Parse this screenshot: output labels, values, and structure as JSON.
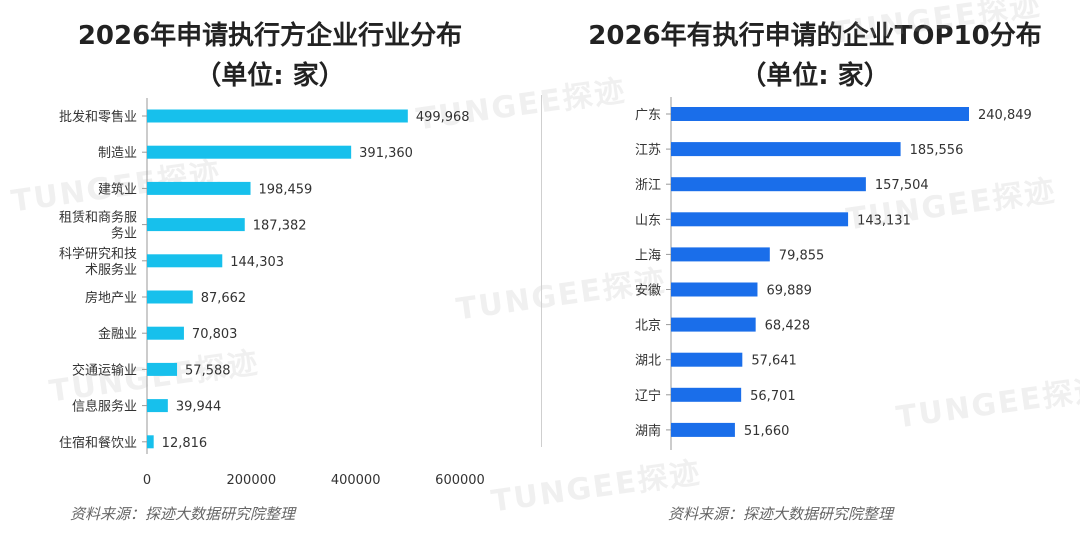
{
  "watermark": "TUNGEE探迹",
  "charts": [
    {
      "title": "2026年申请执行方企业行业分布",
      "subtitle": "（单位: 家）",
      "source": "资料来源：探迹大数据研究院整理"
    },
    {
      "title": "2026年有执行申请的企业TOP10分布",
      "subtitle": "（单位: 家）",
      "source": "资料来源：探迹大数据研究院整理"
    }
  ],
  "chart_data": [
    {
      "type": "bar",
      "orientation": "horizontal",
      "title": "2026年申请执行方企业行业分布（单位: 家）",
      "categories": [
        "批发和零售业",
        "制造业",
        "建筑业",
        "租赁和商务服务业",
        "科学研究和技术服务业",
        "房地产业",
        "金融业",
        "交通运输业",
        "信息服务业",
        "住宿和餐饮业"
      ],
      "category_lines": [
        [
          "批发和零售业"
        ],
        [
          "制造业"
        ],
        [
          "建筑业"
        ],
        [
          "租赁和商务服",
          "务业"
        ],
        [
          "科学研究和技",
          "术服务业"
        ],
        [
          "房地产业"
        ],
        [
          "金融业"
        ],
        [
          "交通运输业"
        ],
        [
          "信息服务业"
        ],
        [
          "住宿和餐饮业"
        ]
      ],
      "values": [
        499968,
        391360,
        198459,
        187382,
        144303,
        87662,
        70803,
        57588,
        39944,
        12816
      ],
      "value_labels": [
        "499,968",
        "391,360",
        "198,459",
        "187,382",
        "144,303",
        "87,662",
        "70,803",
        "57,588",
        "39,944",
        "12,816"
      ],
      "xlim": [
        0,
        600000
      ],
      "xticks": [
        "0",
        "200000",
        "400000",
        "600000"
      ],
      "color": "#17C0EC"
    },
    {
      "type": "bar",
      "orientation": "horizontal",
      "title": "2026年有执行申请的企业TOP10分布（单位: 家）",
      "categories": [
        "广东",
        "江苏",
        "浙江",
        "山东",
        "上海",
        "安徽",
        "北京",
        "湖北",
        "辽宁",
        "湖南"
      ],
      "values": [
        240849,
        185556,
        157504,
        143131,
        79855,
        69889,
        68428,
        57641,
        56701,
        51660
      ],
      "value_labels": [
        "240,849",
        "185,556",
        "157,504",
        "143,131",
        "79,855",
        "69,889",
        "68,428",
        "57,641",
        "56,701",
        "51,660"
      ],
      "xlim": [
        0,
        240849
      ],
      "color": "#1A6EEA"
    }
  ]
}
